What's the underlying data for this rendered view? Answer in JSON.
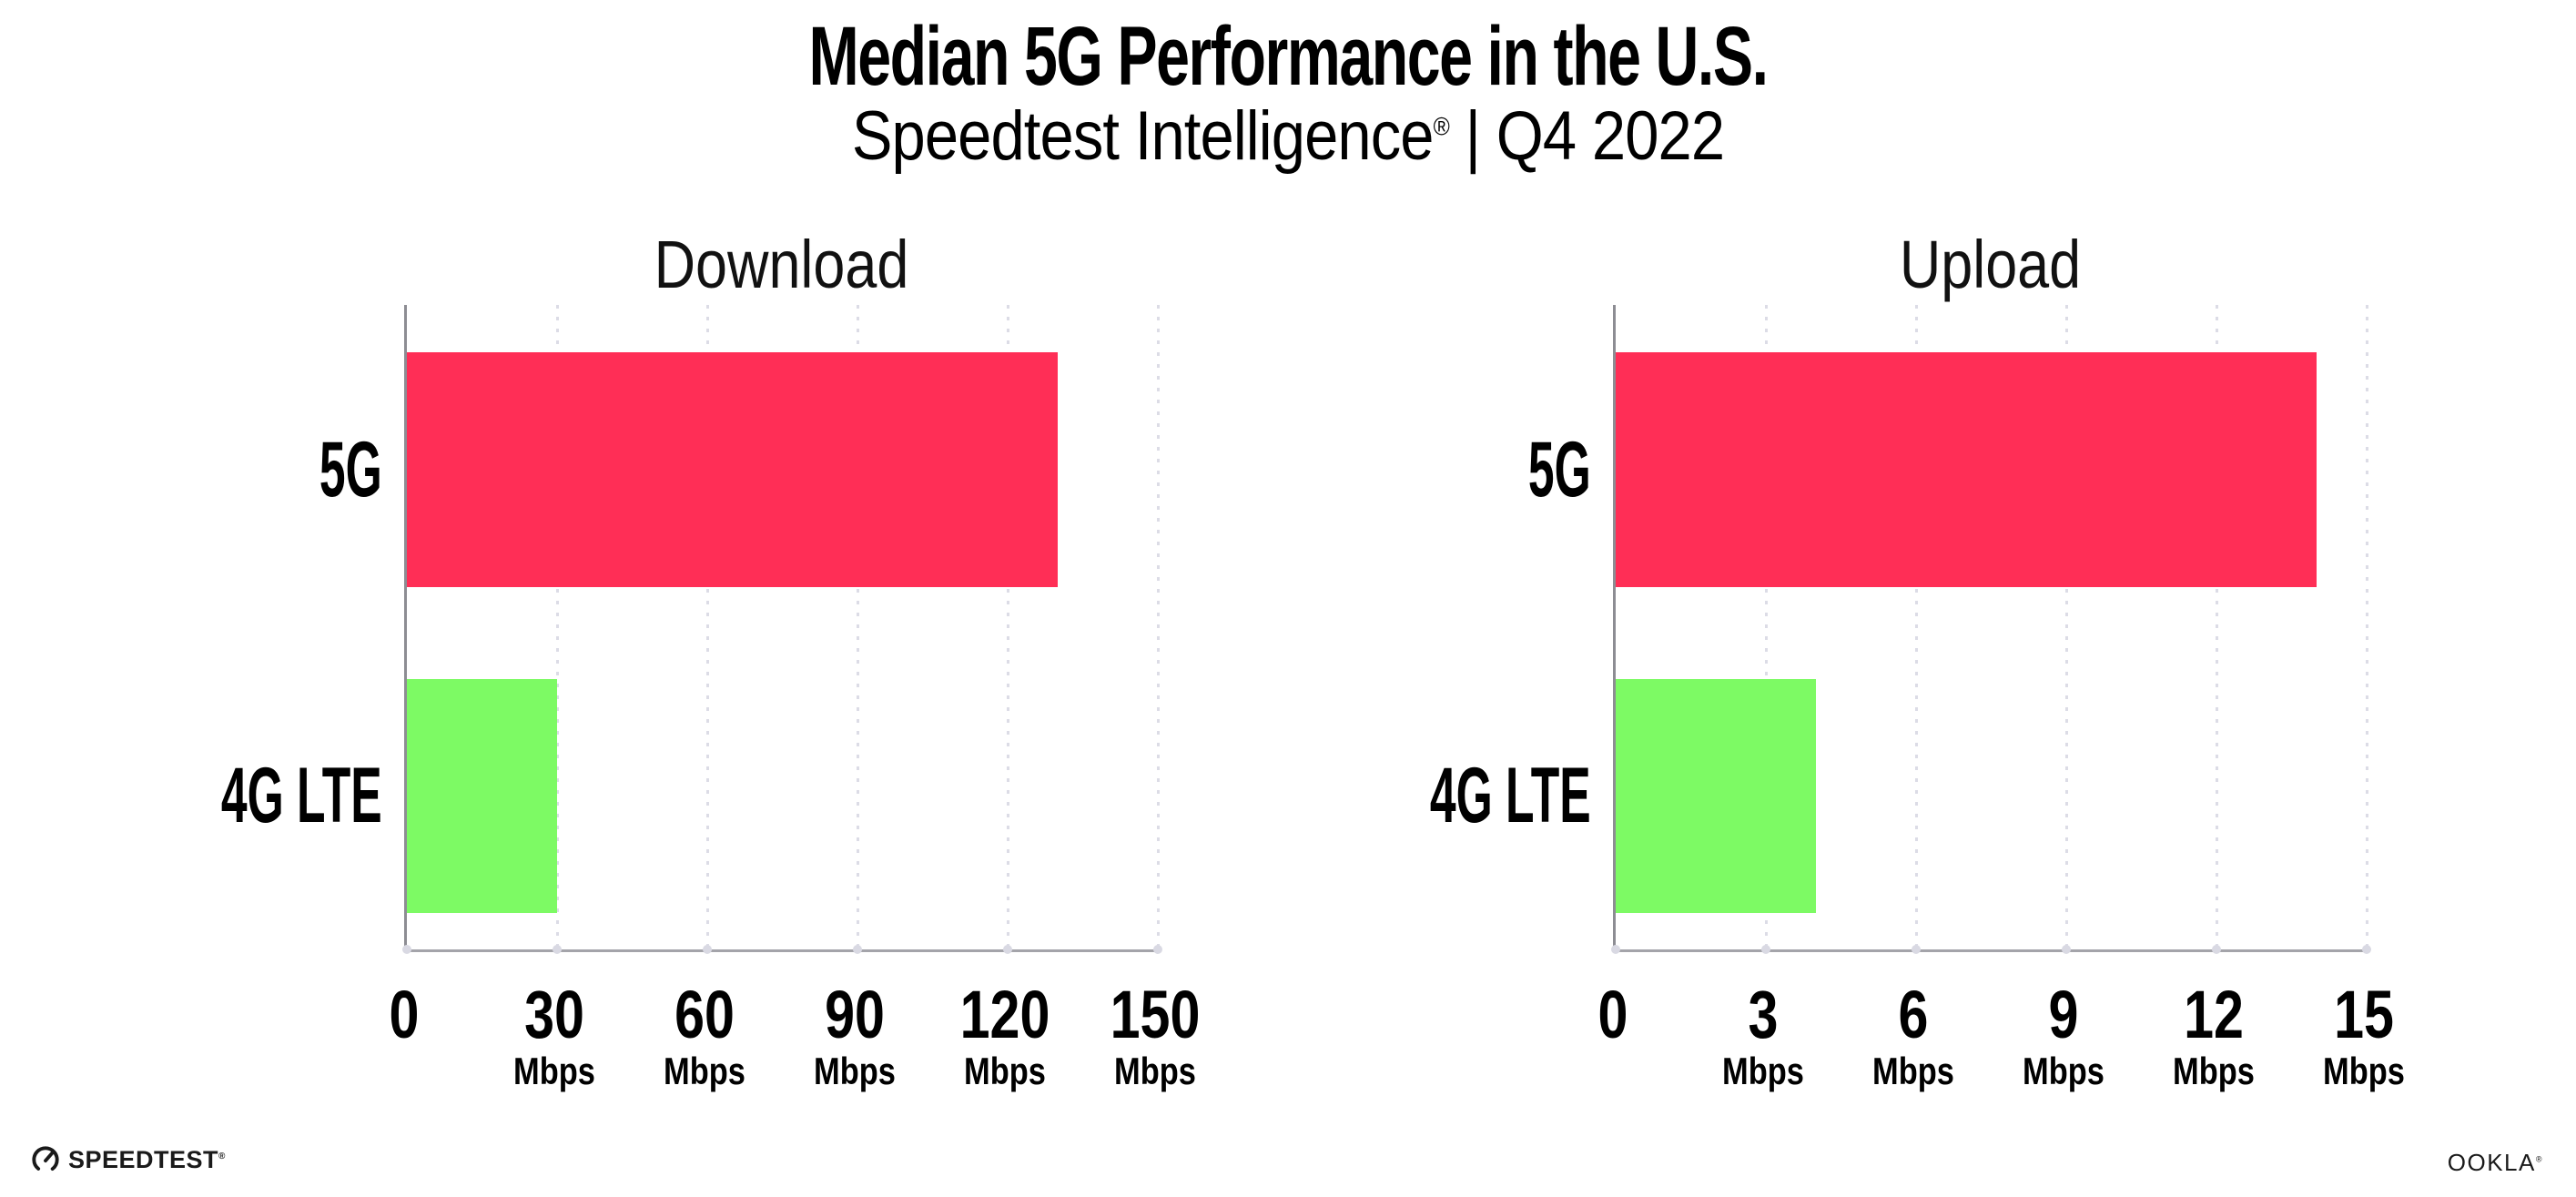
{
  "header": {
    "title": "Median 5G Performance in the U.S.",
    "subtitle_brand": "Speedtest Intelligence",
    "subtitle_reg": "®",
    "subtitle_rest": " | Q4 2022"
  },
  "chart_data": [
    {
      "type": "bar",
      "orientation": "horizontal",
      "title": "Download",
      "categories": [
        "5G",
        "4G LTE"
      ],
      "values": [
        130,
        30
      ],
      "unit": "Mbps",
      "xlim": [
        0,
        150
      ],
      "xticks": [
        0,
        30,
        60,
        90,
        120,
        150
      ],
      "bar_colors": [
        "#ff2e56",
        "#7dfa64"
      ],
      "grid": "vertical-dotted",
      "legend": false
    },
    {
      "type": "bar",
      "orientation": "horizontal",
      "title": "Upload",
      "categories": [
        "5G",
        "4G LTE"
      ],
      "values": [
        14,
        4
      ],
      "unit": "Mbps",
      "xlim": [
        0,
        15
      ],
      "xticks": [
        0,
        3,
        6,
        9,
        12,
        15
      ],
      "bar_colors": [
        "#ff2e56",
        "#7dfa64"
      ],
      "grid": "vertical-dotted",
      "legend": false
    }
  ],
  "footer": {
    "speedtest_label": "SPEEDTEST",
    "speedtest_reg": "®",
    "ookla_label": "OOKLA",
    "ookla_reg": "®"
  },
  "colors": {
    "bar_5g": "#ff2e56",
    "bar_4g_lte": "#7dfa64",
    "axis": "#a4a4aa",
    "y_axis": "#8d8d93",
    "gridline": "#dcdce6",
    "text": "#000000"
  }
}
